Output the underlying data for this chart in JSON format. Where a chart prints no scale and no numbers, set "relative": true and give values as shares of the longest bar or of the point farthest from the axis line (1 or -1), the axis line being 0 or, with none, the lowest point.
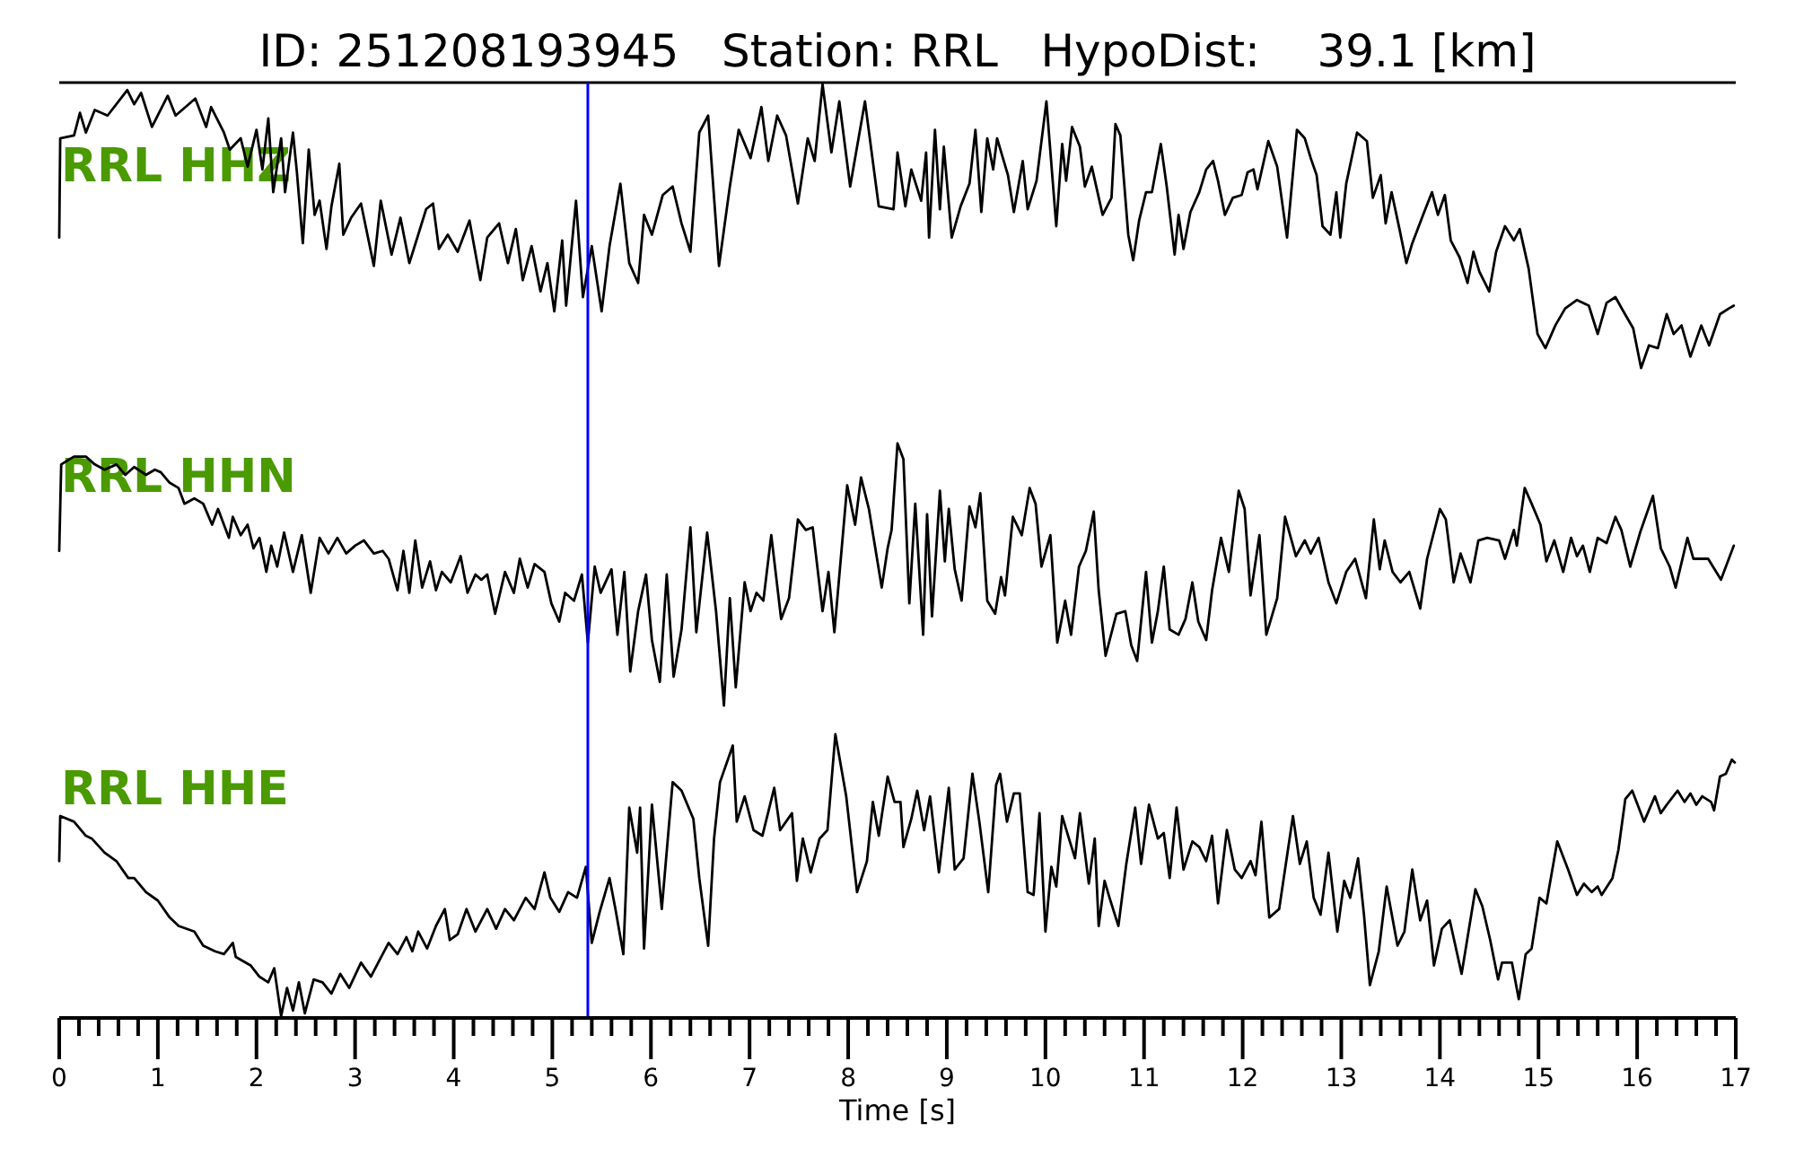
{
  "chart_data": [
    {
      "type": "line",
      "title": "ID: 251208193945   Station: RRL   HypoDist:    39.1 [km]",
      "relative": true,
      "xlim": [
        0,
        17
      ],
      "tick_labels": false,
      "ref_lines": [
        {
          "axis": "x",
          "value": 5.36,
          "color": "#0000ff"
        }
      ],
      "series": [
        {
          "name": "RRL HHZ",
          "color": "#000000",
          "x": [
            0,
            0.01,
            0.15,
            0.21,
            0.27,
            0.36,
            0.49,
            0.69,
            0.76,
            0.83,
            0.94,
            1.1,
            1.18,
            1.38,
            1.49,
            1.54,
            1.67,
            1.73,
            1.84,
            1.91,
            2.0,
            2.06,
            2.12,
            2.17,
            2.25,
            2.29,
            2.37,
            2.41,
            2.47,
            2.53,
            2.59,
            2.64,
            2.71,
            2.76,
            2.84,
            2.88,
            2.96,
            3.06,
            3.19,
            3.26,
            3.37,
            3.46,
            3.55,
            3.64,
            3.72,
            3.79,
            3.85,
            3.94,
            4.04,
            4.16,
            4.27,
            4.34,
            4.46,
            4.55,
            4.63,
            4.7,
            4.79,
            4.88,
            4.95,
            5.02,
            5.1,
            5.14,
            5.24,
            5.31,
            5.4,
            5.5,
            5.58,
            5.69,
            5.78,
            5.87,
            5.93,
            6.01,
            6.12,
            6.22,
            6.31,
            6.4,
            6.49,
            6.58,
            6.69,
            6.8,
            6.89,
            7.01,
            7.12,
            7.19,
            7.28,
            7.37,
            7.49,
            7.59,
            7.66,
            7.74,
            7.83,
            7.91,
            8.02,
            8.17,
            8.31,
            8.46,
            8.5,
            8.58,
            8.64,
            8.74,
            8.79,
            8.82,
            8.88,
            8.93,
            8.97,
            9.05,
            9.14,
            9.23,
            9.29,
            9.35,
            9.41,
            9.47,
            9.51,
            9.62,
            9.68,
            9.77,
            9.82,
            9.91,
            10.01,
            10.11,
            10.17,
            10.21,
            10.27,
            10.35,
            10.4,
            10.47,
            10.58,
            10.67,
            10.71,
            10.76,
            10.84,
            10.89,
            10.95,
            11.02,
            11.08,
            11.17,
            11.23,
            11.31,
            11.35,
            11.4,
            11.47,
            11.56,
            11.63,
            11.7,
            11.75,
            11.82,
            11.9,
            11.99,
            12.05,
            12.11,
            12.15,
            12.26,
            12.35,
            12.45,
            12.55,
            12.63,
            12.69,
            12.75,
            12.81,
            12.89,
            12.95,
            12.99,
            13.05,
            13.16,
            13.26,
            13.32,
            13.4,
            13.45,
            13.51,
            13.59,
            13.66,
            13.72,
            13.83,
            13.92,
            13.98,
            14.05,
            14.11,
            14.2,
            14.28,
            14.34,
            14.4,
            14.5,
            14.57,
            14.66,
            14.75,
            14.81,
            14.9,
            14.99,
            15.07,
            15.17,
            15.27,
            15.39,
            15.51,
            15.6,
            15.69,
            15.78,
            15.86,
            15.96,
            16.04,
            16.12,
            16.21,
            16.3,
            16.37,
            16.45,
            16.54,
            16.65,
            16.73,
            16.84,
            16.93,
            16.98
          ],
          "values": [
            0.46,
            0.81,
            0.82,
            0.9,
            0.83,
            0.91,
            0.89,
            0.98,
            0.93,
            0.97,
            0.85,
            0.96,
            0.89,
            0.95,
            0.85,
            0.92,
            0.83,
            0.77,
            0.81,
            0.71,
            0.84,
            0.7,
            0.88,
            0.62,
            0.81,
            0.62,
            0.83,
            0.69,
            0.44,
            0.77,
            0.54,
            0.59,
            0.42,
            0.57,
            0.72,
            0.47,
            0.53,
            0.58,
            0.36,
            0.59,
            0.4,
            0.53,
            0.37,
            0.47,
            0.56,
            0.58,
            0.42,
            0.47,
            0.41,
            0.52,
            0.31,
            0.46,
            0.51,
            0.37,
            0.49,
            0.31,
            0.43,
            0.27,
            0.37,
            0.2,
            0.45,
            0.22,
            0.59,
            0.25,
            0.43,
            0.2,
            0.43,
            0.65,
            0.37,
            0.3,
            0.54,
            0.47,
            0.61,
            0.64,
            0.51,
            0.41,
            0.83,
            0.89,
            0.36,
            0.64,
            0.84,
            0.74,
            0.92,
            0.73,
            0.89,
            0.82,
            0.58,
            0.81,
            0.73,
            1,
            0.76,
            0.94,
            0.64,
            0.94,
            0.57,
            0.56,
            0.76,
            0.57,
            0.7,
            0.59,
            0.76,
            0.46,
            0.84,
            0.56,
            0.78,
            0.46,
            0.57,
            0.65,
            0.84,
            0.55,
            0.81,
            0.7,
            0.81,
            0.68,
            0.55,
            0.73,
            0.56,
            0.66,
            0.94,
            0.5,
            0.79,
            0.66,
            0.85,
            0.78,
            0.64,
            0.71,
            0.54,
            0.6,
            0.86,
            0.82,
            0.47,
            0.38,
            0.52,
            0.62,
            0.62,
            0.79,
            0.64,
            0.4,
            0.54,
            0.42,
            0.55,
            0.62,
            0.7,
            0.73,
            0.66,
            0.54,
            0.6,
            0.61,
            0.69,
            0.7,
            0.63,
            0.8,
            0.71,
            0.46,
            0.84,
            0.81,
            0.74,
            0.68,
            0.5,
            0.47,
            0.62,
            0.46,
            0.65,
            0.83,
            0.8,
            0.6,
            0.68,
            0.51,
            0.62,
            0.49,
            0.37,
            0.44,
            0.54,
            0.62,
            0.54,
            0.61,
            0.45,
            0.39,
            0.3,
            0.41,
            0.34,
            0.27,
            0.41,
            0.5,
            0.45,
            0.49,
            0.35,
            0.12,
            0.07,
            0.15,
            0.21,
            0.24,
            0.22,
            0.12,
            0.23,
            0.25,
            0.2,
            0.14,
            0,
            0.08,
            0.07,
            0.19,
            0.12,
            0.15,
            0.04,
            0.15,
            0.08,
            0.19,
            0.21,
            0.22
          ]
        }
      ]
    },
    {
      "type": "line",
      "relative": true,
      "xlim": [
        0,
        17
      ],
      "tick_labels": false,
      "ref_lines": [
        {
          "axis": "x",
          "value": 5.36,
          "color": "#0000ff"
        }
      ],
      "series": [
        {
          "name": "RRL HHN",
          "color": "#000000",
          "x": [
            0,
            0.02,
            0.15,
            0.27,
            0.36,
            0.46,
            0.58,
            0.67,
            0.76,
            0.88,
            0.97,
            1.03,
            1.12,
            1.21,
            1.27,
            1.37,
            1.46,
            1.55,
            1.61,
            1.72,
            1.76,
            1.84,
            1.91,
            1.97,
            2.03,
            2.1,
            2.15,
            2.21,
            2.28,
            2.37,
            2.46,
            2.55,
            2.64,
            2.73,
            2.82,
            2.91,
            3.0,
            3.09,
            3.19,
            3.28,
            3.34,
            3.43,
            3.49,
            3.55,
            3.61,
            3.68,
            3.76,
            3.82,
            3.88,
            3.97,
            4.07,
            4.14,
            4.22,
            4.28,
            4.34,
            4.42,
            4.52,
            4.61,
            4.67,
            4.75,
            4.82,
            4.92,
            4.99,
            5.07,
            5.13,
            5.22,
            5.3,
            5.36,
            5.43,
            5.49,
            5.6,
            5.66,
            5.73,
            5.79,
            5.87,
            5.95,
            6.01,
            6.09,
            6.16,
            6.23,
            6.31,
            6.4,
            6.46,
            6.57,
            6.66,
            6.74,
            6.8,
            6.86,
            6.95,
            7.01,
            7.07,
            7.14,
            7.22,
            7.32,
            7.4,
            7.49,
            7.57,
            7.64,
            7.74,
            7.8,
            7.86,
            7.99,
            8.07,
            8.13,
            8.21,
            8.34,
            8.4,
            8.44,
            8.5,
            8.56,
            8.62,
            8.68,
            8.76,
            8.8,
            8.85,
            8.93,
            8.98,
            9.02,
            9.08,
            9.15,
            9.23,
            9.29,
            9.34,
            9.41,
            9.49,
            9.55,
            9.59,
            9.67,
            9.76,
            9.84,
            9.9,
            9.96,
            10.05,
            10.12,
            10.2,
            10.26,
            10.34,
            10.41,
            10.49,
            10.54,
            10.61,
            10.72,
            10.81,
            10.87,
            10.93,
            11.02,
            11.08,
            11.14,
            11.2,
            11.26,
            11.35,
            11.42,
            11.49,
            11.55,
            11.63,
            11.69,
            11.78,
            11.86,
            11.96,
            12.02,
            12.08,
            12.17,
            12.24,
            12.35,
            12.43,
            12.54,
            12.63,
            12.69,
            12.77,
            12.87,
            12.95,
            13.05,
            13.14,
            13.25,
            13.33,
            13.39,
            13.44,
            13.52,
            13.6,
            13.69,
            13.8,
            13.87,
            14.0,
            14.06,
            14.14,
            14.21,
            14.31,
            14.39,
            14.48,
            14.6,
            14.66,
            14.75,
            14.78,
            14.86,
            14.93,
            15.02,
            15.08,
            15.16,
            15.25,
            15.33,
            15.39,
            15.45,
            15.52,
            15.6,
            15.69,
            15.78,
            15.84,
            15.93,
            16.03,
            16.16,
            16.24,
            16.33,
            16.39,
            16.51,
            16.57,
            16.72,
            16.85,
            16.91,
            16.98
          ],
          "values": [
            0.59,
            0.92,
            0.95,
            0.95,
            0.92,
            0.9,
            0.92,
            0.88,
            0.91,
            0.88,
            0.9,
            0.89,
            0.85,
            0.83,
            0.77,
            0.79,
            0.77,
            0.69,
            0.75,
            0.64,
            0.72,
            0.65,
            0.69,
            0.6,
            0.64,
            0.51,
            0.61,
            0.53,
            0.66,
            0.51,
            0.65,
            0.43,
            0.64,
            0.58,
            0.64,
            0.58,
            0.61,
            0.63,
            0.58,
            0.59,
            0.56,
            0.44,
            0.59,
            0.43,
            0.63,
            0.45,
            0.55,
            0.44,
            0.51,
            0.47,
            0.57,
            0.43,
            0.5,
            0.48,
            0.5,
            0.35,
            0.51,
            0.43,
            0.56,
            0.45,
            0.54,
            0.51,
            0.39,
            0.32,
            0.43,
            0.4,
            0.5,
            0.24,
            0.53,
            0.43,
            0.52,
            0.27,
            0.51,
            0.13,
            0.36,
            0.5,
            0.25,
            0.09,
            0.5,
            0.11,
            0.29,
            0.68,
            0.28,
            0.66,
            0.36,
            0,
            0.41,
            0.07,
            0.47,
            0.36,
            0.43,
            0.4,
            0.65,
            0.33,
            0.41,
            0.71,
            0.67,
            0.68,
            0.36,
            0.51,
            0.28,
            0.84,
            0.69,
            0.87,
            0.75,
            0.45,
            0.6,
            0.67,
            1,
            0.94,
            0.39,
            0.77,
            0.27,
            0.73,
            0.34,
            0.82,
            0.55,
            0.75,
            0.52,
            0.4,
            0.76,
            0.68,
            0.81,
            0.4,
            0.35,
            0.49,
            0.42,
            0.72,
            0.65,
            0.83,
            0.77,
            0.53,
            0.65,
            0.24,
            0.4,
            0.27,
            0.53,
            0.59,
            0.74,
            0.44,
            0.19,
            0.35,
            0.36,
            0.23,
            0.17,
            0.51,
            0.24,
            0.36,
            0.53,
            0.29,
            0.27,
            0.33,
            0.47,
            0.32,
            0.25,
            0.44,
            0.64,
            0.51,
            0.82,
            0.75,
            0.42,
            0.65,
            0.27,
            0.41,
            0.72,
            0.57,
            0.63,
            0.58,
            0.64,
            0.47,
            0.39,
            0.51,
            0.56,
            0.41,
            0.71,
            0.52,
            0.63,
            0.51,
            0.47,
            0.51,
            0.37,
            0.56,
            0.75,
            0.71,
            0.47,
            0.58,
            0.47,
            0.63,
            0.64,
            0.63,
            0.56,
            0.67,
            0.61,
            0.83,
            0.77,
            0.69,
            0.55,
            0.63,
            0.51,
            0.64,
            0.57,
            0.61,
            0.51,
            0.64,
            0.62,
            0.72,
            0.67,
            0.53,
            0.66,
            0.8,
            0.6,
            0.53,
            0.45,
            0.64,
            0.56,
            0.56,
            0.48,
            0.54,
            0.61
          ]
        }
      ]
    },
    {
      "type": "line",
      "xlabel": "Time [s]",
      "relative": true,
      "xlim": [
        0,
        17
      ],
      "tick_labels": "x",
      "xticks": [
        0,
        {
          "value": 0.2,
          "label": null
        },
        {
          "value": 0.4,
          "label": null
        },
        {
          "value": 0.6,
          "label": null
        },
        {
          "value": 0.8,
          "label": null
        },
        1,
        {
          "value": 1.2,
          "label": null
        },
        {
          "value": 1.4,
          "label": null
        },
        {
          "value": 1.6,
          "label": null
        },
        {
          "value": 1.8,
          "label": null
        },
        2,
        {
          "value": 2.2,
          "label": null
        },
        {
          "value": 2.4,
          "label": null
        },
        {
          "value": 2.6,
          "label": null
        },
        {
          "value": 2.8,
          "label": null
        },
        3,
        {
          "value": 3.2,
          "label": null
        },
        {
          "value": 3.4,
          "label": null
        },
        {
          "value": 3.6,
          "label": null
        },
        {
          "value": 3.8,
          "label": null
        },
        4,
        {
          "value": 4.2,
          "label": null
        },
        {
          "value": 4.4,
          "label": null
        },
        {
          "value": 4.6,
          "label": null
        },
        {
          "value": 4.8,
          "label": null
        },
        5,
        {
          "value": 5.2,
          "label": null
        },
        {
          "value": 5.4,
          "label": null
        },
        {
          "value": 5.6,
          "label": null
        },
        {
          "value": 5.8,
          "label": null
        },
        6,
        {
          "value": 6.2,
          "label": null
        },
        {
          "value": 6.4,
          "label": null
        },
        {
          "value": 6.6,
          "label": null
        },
        {
          "value": 6.8,
          "label": null
        },
        7,
        {
          "value": 7.2,
          "label": null
        },
        {
          "value": 7.4,
          "label": null
        },
        {
          "value": 7.6,
          "label": null
        },
        {
          "value": 7.8,
          "label": null
        },
        8,
        {
          "value": 8.2,
          "label": null
        },
        {
          "value": 8.4,
          "label": null
        },
        {
          "value": 8.6,
          "label": null
        },
        {
          "value": 8.8,
          "label": null
        },
        9,
        {
          "value": 9.2,
          "label": null
        },
        {
          "value": 9.4,
          "label": null
        },
        {
          "value": 9.6,
          "label": null
        },
        {
          "value": 9.8,
          "label": null
        },
        10,
        {
          "value": 10.2,
          "label": null
        },
        {
          "value": 10.4,
          "label": null
        },
        {
          "value": 10.6,
          "label": null
        },
        {
          "value": 10.8,
          "label": null
        },
        11,
        {
          "value": 11.2,
          "label": null
        },
        {
          "value": 11.4,
          "label": null
        },
        {
          "value": 11.6,
          "label": null
        },
        {
          "value": 11.8,
          "label": null
        },
        12,
        {
          "value": 12.2,
          "label": null
        },
        {
          "value": 12.4,
          "label": null
        },
        {
          "value": 12.6,
          "label": null
        },
        {
          "value": 12.8,
          "label": null
        },
        13,
        {
          "value": 13.2,
          "label": null
        },
        {
          "value": 13.4,
          "label": null
        },
        {
          "value": 13.6,
          "label": null
        },
        {
          "value": 13.8,
          "label": null
        },
        14,
        {
          "value": 14.2,
          "label": null
        },
        {
          "value": 14.4,
          "label": null
        },
        {
          "value": 14.6,
          "label": null
        },
        {
          "value": 14.8,
          "label": null
        },
        15,
        {
          "value": 15.2,
          "label": null
        },
        {
          "value": 15.4,
          "label": null
        },
        {
          "value": 15.6,
          "label": null
        },
        {
          "value": 15.8,
          "label": null
        },
        16,
        {
          "value": 16.2,
          "label": null
        },
        {
          "value": 16.4,
          "label": null
        },
        {
          "value": 16.6,
          "label": null
        },
        {
          "value": 16.8,
          "label": null
        },
        17
      ],
      "ref_lines": [
        {
          "axis": "x",
          "value": 5.36,
          "color": "#0000ff"
        }
      ],
      "series": [
        {
          "name": "RRL HHE",
          "color": "#000000",
          "x": [
            0,
            0.01,
            0.15,
            0.27,
            0.33,
            0.46,
            0.58,
            0.7,
            0.76,
            0.88,
            1.0,
            1.12,
            1.21,
            1.37,
            1.46,
            1.58,
            1.67,
            1.76,
            1.79,
            1.94,
            2.03,
            2.12,
            2.18,
            2.25,
            2.31,
            2.37,
            2.43,
            2.49,
            2.58,
            2.67,
            2.76,
            2.85,
            2.94,
            3.06,
            3.16,
            3.25,
            3.34,
            3.43,
            3.52,
            3.58,
            3.64,
            3.73,
            3.82,
            3.91,
            3.96,
            4.04,
            4.13,
            4.22,
            4.34,
            4.43,
            4.52,
            4.61,
            4.73,
            4.82,
            4.92,
            4.98,
            5.07,
            5.16,
            5.25,
            5.34,
            5.4,
            5.48,
            5.58,
            5.64,
            5.72,
            5.78,
            5.86,
            5.89,
            5.93,
            6.01,
            6.11,
            6.22,
            6.31,
            6.43,
            6.49,
            6.58,
            6.64,
            6.7,
            6.83,
            6.87,
            6.95,
            7.04,
            7.13,
            7.25,
            7.31,
            7.43,
            7.48,
            7.54,
            7.62,
            7.71,
            7.79,
            7.87,
            7.98,
            8.09,
            8.19,
            8.25,
            8.31,
            8.4,
            8.47,
            8.53,
            8.56,
            8.64,
            8.7,
            8.77,
            8.83,
            8.92,
            9.02,
            9.08,
            9.17,
            9.26,
            9.33,
            9.42,
            9.5,
            9.54,
            9.61,
            9.68,
            9.74,
            9.82,
            9.88,
            9.94,
            10.0,
            10.06,
            10.11,
            10.17,
            10.23,
            10.3,
            10.35,
            10.44,
            10.5,
            10.54,
            10.6,
            10.65,
            10.74,
            10.82,
            10.91,
            10.97,
            11.05,
            11.14,
            11.2,
            11.26,
            11.33,
            11.4,
            11.49,
            11.56,
            11.63,
            11.69,
            11.75,
            11.84,
            11.92,
            11.99,
            12.08,
            12.13,
            12.19,
            12.27,
            12.37,
            12.51,
            12.58,
            12.65,
            12.72,
            12.79,
            12.87,
            12.96,
            13.03,
            13.09,
            13.17,
            13.23,
            13.29,
            13.38,
            13.46,
            13.57,
            13.64,
            13.72,
            13.8,
            13.87,
            13.94,
            14.02,
            14.1,
            14.22,
            14.36,
            14.43,
            14.51,
            14.59,
            14.63,
            14.73,
            14.8,
            14.87,
            14.93,
            15.01,
            15.08,
            15.19,
            15.3,
            15.39,
            15.46,
            15.54,
            15.6,
            15.64,
            15.75,
            15.81,
            15.88,
            15.95,
            16.07,
            16.18,
            16.24,
            16.3,
            16.41,
            16.48,
            16.54,
            16.6,
            16.66,
            16.75,
            16.78,
            16.84,
            16.9,
            16.96,
            16.99
          ],
          "values": [
            0.55,
            0.71,
            0.69,
            0.64,
            0.63,
            0.58,
            0.55,
            0.49,
            0.49,
            0.44,
            0.41,
            0.35,
            0.32,
            0.3,
            0.25,
            0.23,
            0.22,
            0.26,
            0.21,
            0.18,
            0.14,
            0.12,
            0.17,
            0,
            0.1,
            0.02,
            0.12,
            0.01,
            0.13,
            0.12,
            0.08,
            0.15,
            0.1,
            0.19,
            0.14,
            0.2,
            0.26,
            0.22,
            0.28,
            0.23,
            0.3,
            0.24,
            0.32,
            0.38,
            0.27,
            0.29,
            0.38,
            0.3,
            0.38,
            0.31,
            0.38,
            0.34,
            0.42,
            0.38,
            0.51,
            0.42,
            0.37,
            0.44,
            0.42,
            0.53,
            0.26,
            0.37,
            0.49,
            0.38,
            0.22,
            0.74,
            0.58,
            0.74,
            0.24,
            0.75,
            0.38,
            0.83,
            0.8,
            0.7,
            0.49,
            0.25,
            0.63,
            0.83,
            0.96,
            0.69,
            0.78,
            0.66,
            0.64,
            0.81,
            0.66,
            0.72,
            0.48,
            0.63,
            0.51,
            0.63,
            0.66,
            1,
            0.78,
            0.44,
            0.55,
            0.76,
            0.64,
            0.85,
            0.76,
            0.76,
            0.6,
            0.7,
            0.8,
            0.66,
            0.78,
            0.51,
            0.81,
            0.52,
            0.56,
            0.86,
            0.69,
            0.44,
            0.82,
            0.86,
            0.69,
            0.79,
            0.79,
            0.44,
            0.43,
            0.72,
            0.3,
            0.53,
            0.46,
            0.71,
            0.64,
            0.56,
            0.72,
            0.47,
            0.63,
            0.32,
            0.48,
            0.42,
            0.32,
            0.54,
            0.74,
            0.54,
            0.75,
            0.63,
            0.65,
            0.49,
            0.74,
            0.52,
            0.62,
            0.6,
            0.55,
            0.64,
            0.4,
            0.66,
            0.52,
            0.49,
            0.55,
            0.5,
            0.69,
            0.35,
            0.38,
            0.71,
            0.54,
            0.62,
            0.42,
            0.36,
            0.58,
            0.3,
            0.48,
            0.42,
            0.56,
            0.36,
            0.11,
            0.23,
            0.46,
            0.25,
            0.3,
            0.52,
            0.34,
            0.41,
            0.18,
            0.31,
            0.34,
            0.15,
            0.45,
            0.39,
            0.27,
            0.13,
            0.19,
            0.19,
            0.06,
            0.22,
            0.24,
            0.42,
            0.4,
            0.62,
            0.52,
            0.43,
            0.47,
            0.44,
            0.46,
            0.43,
            0.49,
            0.59,
            0.77,
            0.8,
            0.69,
            0.78,
            0.72,
            0.75,
            0.8,
            0.76,
            0.79,
            0.75,
            0.78,
            0.76,
            0.73,
            0.85,
            0.86,
            0.91,
            0.9
          ]
        }
      ]
    }
  ]
}
